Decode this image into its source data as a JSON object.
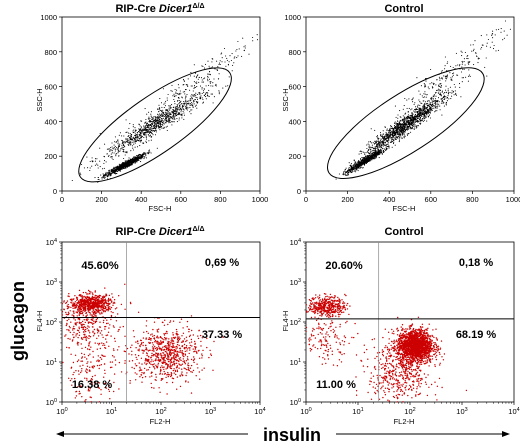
{
  "global_axes": {
    "y_label": "glucagon",
    "x_label": "insulin"
  },
  "chart_data": [
    {
      "type": "scatter",
      "title": "RIP-Cre  Dicer1",
      "title_main": "RIP-Cre",
      "title_italic": "Dicer1",
      "title_sup": "Δ/Δ",
      "xlabel": "FSC-H",
      "ylabel": "SSC-H",
      "xlim": [
        0,
        1000
      ],
      "ylim": [
        0,
        1000
      ],
      "xticks": [
        "0",
        "200",
        "400",
        "600",
        "800",
        "1000"
      ],
      "yticks": [
        "0",
        "200",
        "400",
        "600",
        "800",
        "1000"
      ],
      "point_color": "#000000",
      "gate_ellipse": {
        "cx": 470,
        "cy": 380,
        "rx": 460,
        "ry": 160,
        "angle_deg": 35
      },
      "clusters": [
        {
          "cx": 320,
          "cy": 150,
          "sx": 60,
          "sy": 35,
          "n": 900
        },
        {
          "cx": 470,
          "cy": 380,
          "sx": 160,
          "sy": 110,
          "n": 900
        },
        {
          "cx": 650,
          "cy": 600,
          "sx": 200,
          "sy": 170,
          "n": 250
        }
      ]
    },
    {
      "type": "scatter",
      "title": "Control",
      "xlabel": "FSC-H",
      "ylabel": "SSC-H",
      "xlim": [
        0,
        1000
      ],
      "ylim": [
        0,
        1000
      ],
      "xticks": [
        "0",
        "200",
        "400",
        "600",
        "800",
        "1000"
      ],
      "yticks": [
        "0",
        "200",
        "400",
        "600",
        "800",
        "1000"
      ],
      "point_color": "#000000",
      "gate_ellipse": {
        "cx": 480,
        "cy": 390,
        "rx": 440,
        "ry": 165,
        "angle_deg": 33
      },
      "clusters": [
        {
          "cx": 280,
          "cy": 170,
          "sx": 55,
          "sy": 40,
          "n": 700
        },
        {
          "cx": 480,
          "cy": 380,
          "sx": 120,
          "sy": 100,
          "n": 1300
        },
        {
          "cx": 650,
          "cy": 620,
          "sx": 190,
          "sy": 180,
          "n": 250
        }
      ]
    },
    {
      "type": "scatter",
      "title": "RIP-Cre  Dicer1",
      "title_main": "RIP-Cre",
      "title_italic": "Dicer1",
      "title_sup": "Δ/Δ",
      "xlabel": "FL2-H",
      "ylabel": "FL4-H",
      "xscale": "log",
      "yscale": "log",
      "xlim": [
        1,
        10000
      ],
      "ylim": [
        1,
        10000
      ],
      "xticks": [
        "10^0",
        "10^1",
        "10^2",
        "10^3",
        "10^4"
      ],
      "yticks": [
        "10^0",
        "10^1",
        "10^2",
        "10^3",
        "10^4"
      ],
      "point_color": "#cc0000",
      "quadrant_lines": {
        "x": 20,
        "y": 130
      },
      "quadrants": [
        {
          "position": "top-left",
          "label": "45.60%"
        },
        {
          "position": "top-right",
          "label": "0,69 %"
        },
        {
          "position": "bottom-right",
          "label": "37.33 %"
        },
        {
          "position": "bottom-left",
          "label": "16.38 %"
        }
      ],
      "clusters": [
        {
          "lx": 0.6,
          "ly": 2.45,
          "sx": 0.22,
          "sy": 0.12,
          "n": 650
        },
        {
          "lx": 0.5,
          "ly": 1.95,
          "sx": 0.3,
          "sy": 0.25,
          "n": 250
        },
        {
          "lx": 2.1,
          "ly": 1.2,
          "sx": 0.35,
          "sy": 0.35,
          "n": 700
        },
        {
          "lx": 0.6,
          "ly": 0.8,
          "sx": 0.35,
          "sy": 0.5,
          "n": 200
        }
      ]
    },
    {
      "type": "scatter",
      "title": "Control",
      "xlabel": "FL2-H",
      "ylabel": "FL4-H",
      "xscale": "log",
      "yscale": "log",
      "xlim": [
        1,
        10000
      ],
      "ylim": [
        1,
        10000
      ],
      "xticks": [
        "10^0",
        "10^1",
        "10^2",
        "10^3",
        "10^4"
      ],
      "yticks": [
        "10^0",
        "10^1",
        "10^2",
        "10^3",
        "10^4"
      ],
      "point_color": "#cc0000",
      "quadrant_lines": {
        "x": 25,
        "y": 120
      },
      "quadrants": [
        {
          "position": "top-left",
          "label": "20.60%"
        },
        {
          "position": "top-right",
          "label": "0,18 %"
        },
        {
          "position": "bottom-right",
          "label": "68.19 %"
        },
        {
          "position": "bottom-left",
          "label": "11.00 %"
        }
      ],
      "clusters": [
        {
          "lx": 0.4,
          "ly": 2.4,
          "sx": 0.18,
          "sy": 0.12,
          "n": 400
        },
        {
          "lx": 2.1,
          "ly": 1.4,
          "sx": 0.17,
          "sy": 0.2,
          "n": 1800
        },
        {
          "lx": 1.8,
          "ly": 0.7,
          "sx": 0.3,
          "sy": 0.45,
          "n": 500
        },
        {
          "lx": 0.4,
          "ly": 1.6,
          "sx": 0.25,
          "sy": 0.3,
          "n": 150
        }
      ]
    }
  ]
}
